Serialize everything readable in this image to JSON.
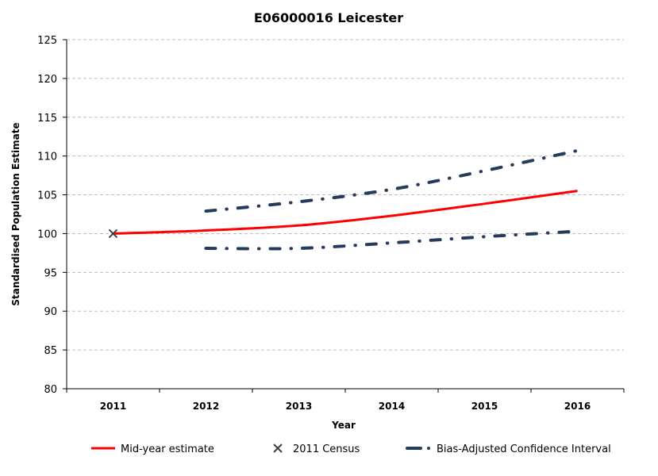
{
  "chart_data": {
    "type": "line",
    "title": "E06000016 Leicester",
    "xlabel": "Year",
    "ylabel": "Standardised Population Estimate",
    "categories": [
      "2011",
      "2012",
      "2013",
      "2014",
      "2015",
      "2016"
    ],
    "ylim": [
      80,
      125
    ],
    "yticks": [
      80,
      85,
      90,
      95,
      100,
      105,
      110,
      115,
      120,
      125
    ],
    "grid": true,
    "legend_position": "bottom",
    "series": [
      {
        "name": "Mid-year estimate",
        "style": "solid",
        "color": "#ff0000",
        "values": [
          100,
          100.4,
          101.05,
          102.3,
          103.85,
          105.5
        ]
      },
      {
        "name": "2011 Census",
        "style": "marker-x",
        "color": "#404040",
        "values": [
          100,
          null,
          null,
          null,
          null,
          null
        ]
      },
      {
        "name": "Bias-Adjusted Confidence Interval",
        "style": "dash-dot",
        "color": "#243b5c",
        "values": [
          null,
          102.9,
          104.1,
          105.7,
          108.1,
          110.7
        ]
      },
      {
        "name": "",
        "style": "dash-dot",
        "color": "#243b5c",
        "values": [
          null,
          98.1,
          98.1,
          98.8,
          99.6,
          100.3
        ]
      }
    ]
  }
}
